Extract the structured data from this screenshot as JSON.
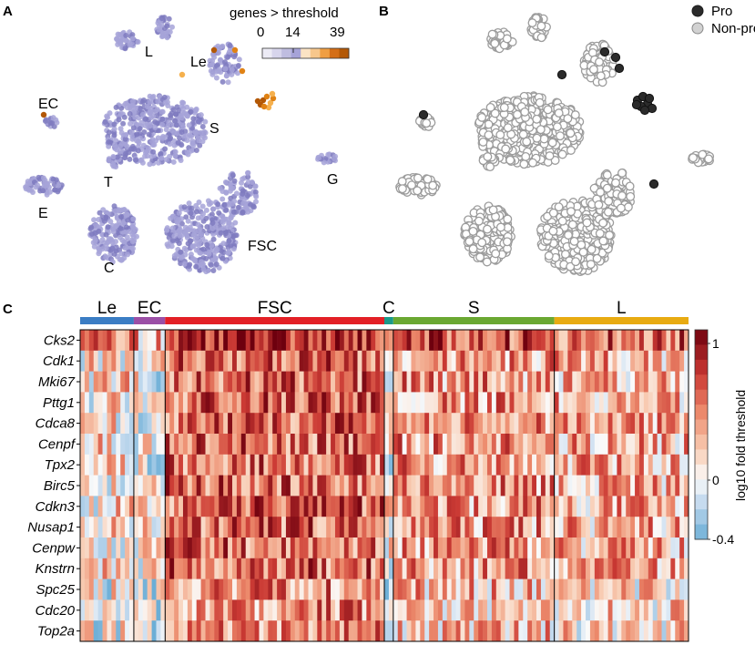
{
  "panels": {
    "a": "A",
    "b": "B",
    "c": "C"
  },
  "panel_a": {
    "colorbar_title": "genes > threshold",
    "colorbar_ticks": [
      "0",
      "14",
      "39"
    ],
    "clusters": [
      "L",
      "Le",
      "EC",
      "S",
      "T",
      "G",
      "E",
      "C",
      "FSC"
    ]
  },
  "panel_b": {
    "legend": [
      {
        "label": "Pro",
        "color": "#2b2b2b"
      },
      {
        "label": "Non-pro",
        "color": "#d2d2d2"
      }
    ]
  },
  "chart_data": {
    "type": "heatmap",
    "title": "",
    "groups": [
      {
        "name": "Le",
        "color": "#3b7dc4"
      },
      {
        "name": "EC",
        "color": "#9b4fa6"
      },
      {
        "name": "FSC",
        "color": "#e32026"
      },
      {
        "name": "C",
        "color": "#1a9a8a"
      },
      {
        "name": "S",
        "color": "#6aa832"
      },
      {
        "name": "L",
        "color": "#e8ab12"
      }
    ],
    "genes": [
      "Cks2",
      "Cdk1",
      "Mki67",
      "Pttg1",
      "Cdca8",
      "Cenpf",
      "Tpx2",
      "Birc5",
      "Cdkn3",
      "Nusap1",
      "Cenpw",
      "Knstrn",
      "Spc25",
      "Cdc20",
      "Top2a"
    ],
    "colorbar_label": "log10 fold threshold",
    "colorbar_ticks": [
      "1",
      "0",
      "-0.4"
    ],
    "value_range": [
      -0.4,
      1
    ]
  }
}
